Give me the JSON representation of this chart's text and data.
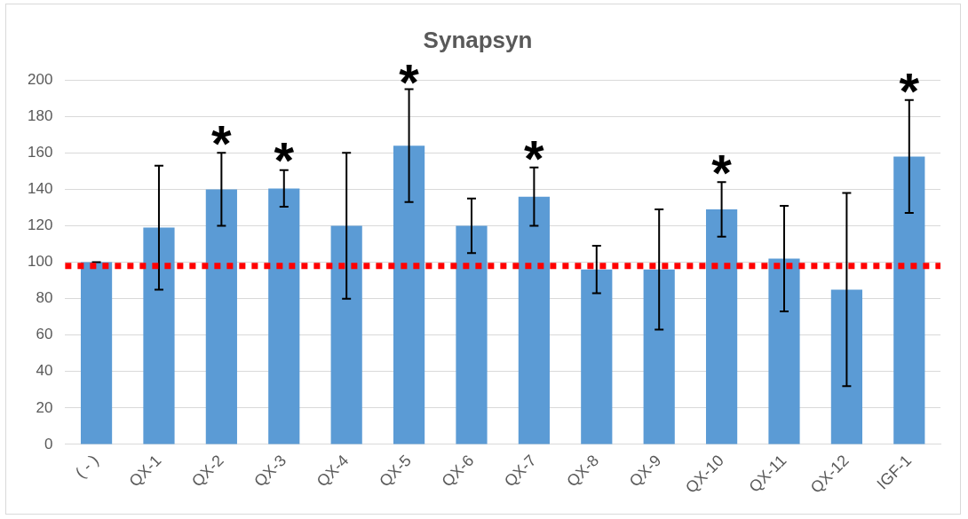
{
  "chart_data": {
    "type": "bar",
    "title": "Synapsyn",
    "categories": [
      "( - )",
      "QX-1",
      "QX-2",
      "QX-3",
      "QX-4",
      "QX-5",
      "QX-6",
      "QX-7",
      "QX-8",
      "QX-9",
      "QX-10",
      "QX-11",
      "QX-12",
      "IGF-1"
    ],
    "values": [
      100,
      119,
      140,
      140.5,
      120,
      164,
      120,
      136,
      96,
      96,
      129,
      102,
      85,
      158
    ],
    "errors": [
      0,
      34,
      20,
      10,
      40,
      31,
      15,
      16,
      13,
      33,
      15,
      29,
      53,
      31
    ],
    "color": "#5b9bd5",
    "ylim": [
      0,
      200
    ],
    "yticks": [
      0,
      20,
      40,
      60,
      80,
      100,
      120,
      140,
      160,
      180,
      200
    ],
    "grid": "y",
    "legend": false,
    "ref_lines": [
      {
        "axis": "y",
        "value": 98,
        "color": "#ff0000",
        "line_style": "dotted"
      }
    ],
    "annotations": [
      {
        "text": "*",
        "x": "QX-2",
        "y": 160
      },
      {
        "text": "*",
        "x": "QX-3",
        "y": 151
      },
      {
        "text": "*",
        "x": "QX-5",
        "y": 194
      },
      {
        "text": "*",
        "x": "QX-7",
        "y": 152
      },
      {
        "text": "*",
        "x": "QX-10",
        "y": 144
      },
      {
        "text": "*",
        "x": "IGF-1",
        "y": 189
      }
    ]
  }
}
